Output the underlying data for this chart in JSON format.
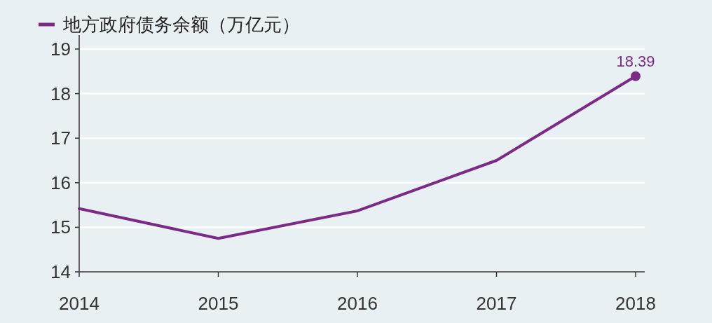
{
  "chart_data": {
    "type": "line",
    "categories": [
      "2014",
      "2015",
      "2016",
      "2017",
      "2018"
    ],
    "series": [
      {
        "name": "地方政府债务余额（万亿元）",
        "color": "#7b2a86",
        "values": [
          15.42,
          14.75,
          15.37,
          16.5,
          18.39
        ],
        "value_labels": [
          null,
          null,
          null,
          null,
          "18.39"
        ]
      }
    ],
    "ylim": [
      14,
      19
    ],
    "yticks": [
      14,
      15,
      16,
      17,
      18,
      19
    ],
    "grid": "y",
    "legend": "top left",
    "marker": "none",
    "line_style": "solid"
  }
}
